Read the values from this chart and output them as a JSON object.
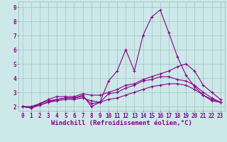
{
  "xlabel": "Windchill (Refroidissement éolien,°C)",
  "background_color": "#cce8e8",
  "line_color": "#880088",
  "grid_color": "#99bbbb",
  "hours": [
    0,
    1,
    2,
    3,
    4,
    5,
    6,
    7,
    8,
    9,
    10,
    11,
    12,
    13,
    14,
    15,
    16,
    17,
    18,
    19,
    20,
    21,
    22,
    23
  ],
  "line1": [
    2.0,
    1.9,
    2.2,
    2.4,
    2.5,
    2.6,
    2.6,
    2.8,
    2.0,
    2.3,
    3.8,
    4.5,
    6.0,
    4.5,
    7.0,
    8.3,
    8.8,
    7.2,
    5.5,
    4.2,
    3.4,
    2.8,
    2.4,
    2.3
  ],
  "line2": [
    2.0,
    2.0,
    2.2,
    2.5,
    2.7,
    2.7,
    2.7,
    2.9,
    2.8,
    2.8,
    3.0,
    3.2,
    3.5,
    3.6,
    3.9,
    4.1,
    4.3,
    4.5,
    4.8,
    5.0,
    4.5,
    3.5,
    3.0,
    2.5
  ],
  "line3": [
    2.0,
    1.9,
    2.1,
    2.3,
    2.4,
    2.5,
    2.5,
    2.6,
    2.4,
    2.3,
    2.5,
    2.6,
    2.8,
    3.0,
    3.2,
    3.4,
    3.5,
    3.6,
    3.6,
    3.5,
    3.2,
    2.8,
    2.5,
    2.3
  ],
  "line4": [
    2.0,
    1.9,
    2.1,
    2.3,
    2.5,
    2.6,
    2.6,
    2.7,
    2.2,
    2.3,
    2.9,
    3.0,
    3.3,
    3.5,
    3.8,
    3.9,
    4.1,
    4.1,
    3.9,
    3.8,
    3.5,
    3.0,
    2.6,
    2.3
  ],
  "ylim": [
    1.7,
    9.4
  ],
  "yticks": [
    2,
    3,
    4,
    5,
    6,
    7,
    8,
    9
  ],
  "tick_fontsize": 5.5,
  "xlabel_fontsize": 6.5
}
